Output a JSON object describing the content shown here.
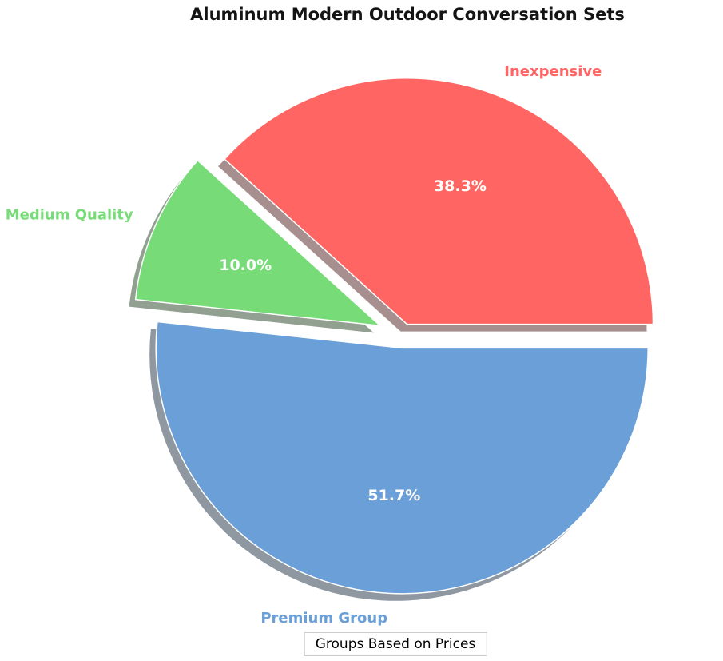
{
  "chart_data": {
    "type": "pie",
    "title": "Aluminum Modern Outdoor Conversation Sets",
    "caption_label": "Groups Based on Prices",
    "startangle": 0,
    "direction": "counterclockwise",
    "shadow": true,
    "labeldistance": 1.1,
    "pctdistance": 0.6,
    "legend_position": "none",
    "slices": [
      {
        "label": "Inexpensive",
        "value": 38.3,
        "pct_label": "38.3%",
        "color": "#FF6663",
        "explode": 0.05
      },
      {
        "label": "Medium Quality",
        "value": 10.0,
        "pct_label": "10.0%",
        "color": "#77DC77",
        "explode": 0.1
      },
      {
        "label": "Premium Group",
        "value": 51.7,
        "pct_label": "51.7%",
        "color": "#6A9FD8",
        "explode": 0.05
      }
    ]
  }
}
